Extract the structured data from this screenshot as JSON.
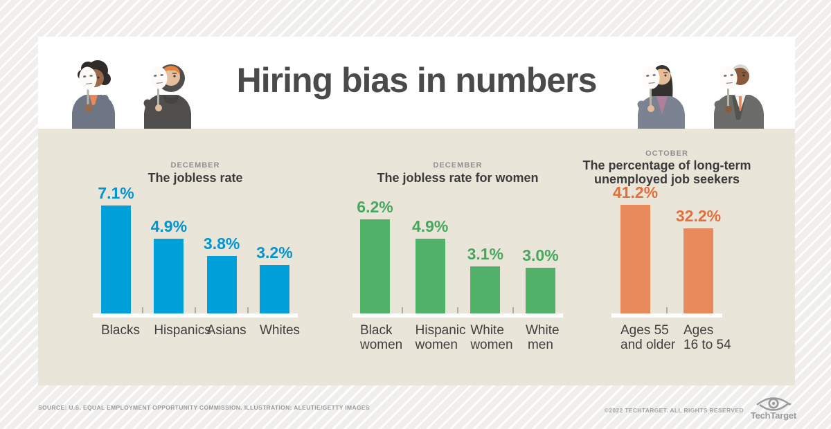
{
  "header": {
    "title": "Hiring bias in numbers"
  },
  "chart_data": [
    {
      "type": "bar",
      "eyebrow": "DECEMBER",
      "title": "The jobless rate",
      "categories": [
        "Blacks",
        "Hispanics",
        "Asians",
        "Whites"
      ],
      "values": [
        7.1,
        4.9,
        3.8,
        3.2
      ],
      "value_labels": [
        "7.1%",
        "4.9%",
        "3.8%",
        "3.2%"
      ],
      "unit": "%",
      "ymax": 7.2,
      "bar_color": "#00a0db",
      "label_color": "#0095d2",
      "grid": false,
      "legend": "none"
    },
    {
      "type": "bar",
      "eyebrow": "DECEMBER",
      "title": "The jobless rate for women",
      "categories": [
        "Black\nwomen",
        "Hispanic\nwomen",
        "White\nwomen",
        "White\nmen"
      ],
      "values": [
        6.2,
        4.9,
        3.1,
        3.0
      ],
      "value_labels": [
        "6.2%",
        "4.9%",
        "3.1%",
        "3.0%"
      ],
      "unit": "%",
      "ymax": 7.2,
      "bar_color": "#53b269",
      "label_color": "#45a85e",
      "grid": false,
      "legend": "none"
    },
    {
      "type": "bar",
      "eyebrow": "OCTOBER",
      "title": "The percentage of long-term\nunemployed job seekers",
      "categories": [
        "Ages 55\nand older",
        "Ages\n16 to 54"
      ],
      "values": [
        41.2,
        32.2
      ],
      "value_labels": [
        "41.2%",
        "32.2%"
      ],
      "unit": "%",
      "ymax": 41.5,
      "bar_color": "#e98a5c",
      "label_color": "#e0703d",
      "grid": false,
      "legend": "none"
    }
  ],
  "illustrations": {
    "people": [
      {
        "id": "masked-woman-curly-hair"
      },
      {
        "id": "masked-person-hoodie-orange-hair"
      },
      {
        "id": "masked-woman-long-hair"
      },
      {
        "id": "masked-older-man-suit"
      }
    ]
  },
  "footer": {
    "source_text": "SOURCE: U.S. EQUAL EMPLOYMENT OPPORTUNITY COMMISSION. ILLUSTRATION: ALEUTIE/GETTY IMAGES",
    "copyright": "©2022 TECHTARGET. ALL RIGHTS RESERVED",
    "logo_text": "TechTarget"
  },
  "colors": {
    "page_stripe_bg": "#f0efed",
    "card_bg": "#ffffff",
    "chart_band_bg": "#e9e5d9",
    "title_color": "#4a4a4a",
    "baseline": "#ffffff",
    "axis_tick": "#b3ab9c"
  }
}
